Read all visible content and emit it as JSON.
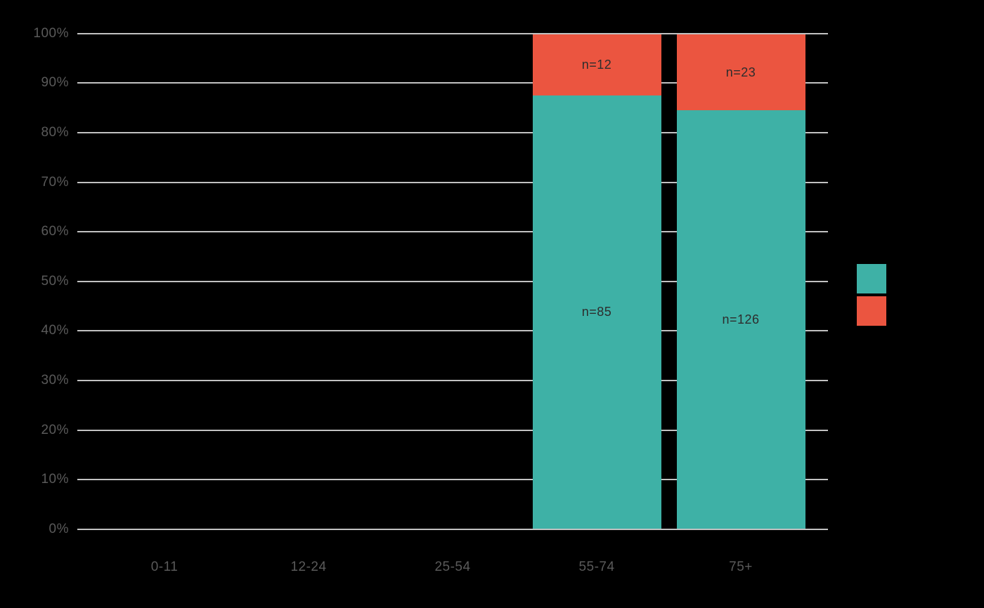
{
  "canvas": {
    "background": "#000000"
  },
  "chart_data": {
    "type": "bar",
    "variant": "stacked-100-percent-column",
    "title": "",
    "xlabel": "",
    "ylabel": "",
    "categories": [
      "0-11",
      "12-24",
      "25-54",
      "55-74",
      "75+"
    ],
    "series": [
      {
        "id": "teal-series",
        "color": "#3EB1A6",
        "stack_order": "bottom",
        "counts": [
          null,
          null,
          null,
          85,
          126
        ],
        "values_pct": [
          0,
          0,
          0,
          87.6,
          84.6
        ],
        "bar_labels": [
          "",
          "",
          "",
          "n=85",
          "n=126"
        ]
      },
      {
        "id": "orange-series",
        "color": "#EB5540",
        "stack_order": "top",
        "counts": [
          null,
          null,
          null,
          12,
          23
        ],
        "values_pct": [
          0,
          0,
          0,
          12.4,
          15.4
        ],
        "bar_labels": [
          "",
          "",
          "",
          "n=12",
          "n=23"
        ]
      }
    ],
    "y_axis": {
      "min": 0,
      "max": 100,
      "tick_step": 10,
      "ticks": [
        "0%",
        "10%",
        "20%",
        "30%",
        "40%",
        "50%",
        "60%",
        "70%",
        "80%",
        "90%",
        "100%"
      ],
      "grid": true
    },
    "legend": {
      "position": "middle-right",
      "labels_visible": false,
      "swatches": [
        {
          "id": "teal-swatch",
          "color": "#3EB1A6"
        },
        {
          "id": "orange-swatch",
          "color": "#EB5540"
        }
      ]
    },
    "style": {
      "gridline_color": "#C2C2C2",
      "tick_label_color": "#5A5A5A",
      "bar_label_color": "#2D2D2D"
    }
  }
}
